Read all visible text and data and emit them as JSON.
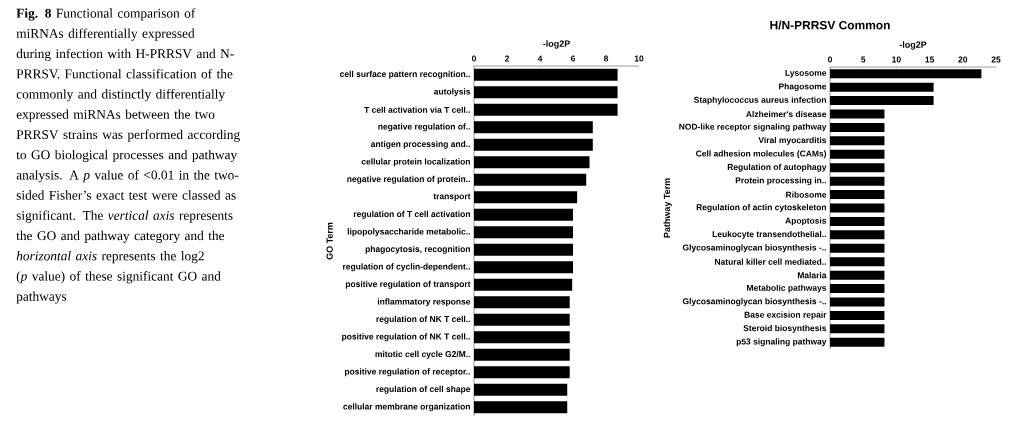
{
  "chart_data": [
    {
      "type": "bar",
      "orientation": "horizontal",
      "xlabel": "-log2P",
      "ylabel": "GO Term",
      "color": "#000000",
      "xlim": [
        0,
        10
      ],
      "xticks": [
        0,
        2,
        4,
        6,
        8,
        10
      ],
      "categories": [
        "cell surface pattern recognition..",
        "autolysis",
        "T cell activation via T cell..",
        "negative regulation of..",
        "antigen processing and..",
        "cellular protein localization",
        "negative regulation of protein..",
        "transport",
        "regulation of T cell activation",
        "lipopolysaccharide metabolic..",
        "phagocytosis, recognition",
        "regulation of cyclin-dependent..",
        "positive regulation of transport",
        "inflammatory response",
        "regulation of NK T cell..",
        "positive regulation of NK T cell..",
        "mitotic cell cycle G2/M..",
        "positive regulation of receptor..",
        "regulation of cell shape",
        "cellular membrane organization"
      ],
      "values": [
        8.7,
        8.7,
        8.7,
        7.2,
        7.2,
        7.0,
        6.8,
        6.25,
        6.0,
        6.0,
        6.0,
        6.0,
        5.95,
        5.8,
        5.8,
        5.8,
        5.8,
        5.8,
        5.65,
        5.65
      ],
      "annotations": [
        "**Fig. 8** Functional comparison of miRNAs differentially expressed during infection with H-PRRSV and N-PRRSV. Functional classification of the commonly and distinctly differentially expressed miRNAs between the two PRRSV strains was performed according to GO biological processes and pathway analysis. A *p* value of <0.01 in the two-sided Fisher’s exact test were classed as significant. The *vertical axis* represents the GO and pathway category and the *horizontal axis* represents the log2 (*p* value) of these significant GO and pathways"
      ]
    },
    {
      "type": "bar",
      "orientation": "horizontal",
      "title": "H/N-PRRSV Common",
      "xlabel": "-log2P",
      "ylabel": "Pathway Term",
      "color": "#000000",
      "xlim": [
        0,
        25
      ],
      "xticks": [
        0,
        5,
        10,
        15,
        20,
        25
      ],
      "categories": [
        "Lysosome",
        "Phagosome",
        "Staphylococcus aureus infection",
        "Alzheimer's disease",
        "NOD-like receptor signaling pathway",
        "Viral myocarditis",
        "Cell adhesion molecules (CAMs)",
        "Regulation of autophagy",
        "Protein processing in..",
        "Ribosome",
        "Regulation of actin cytoskeleton",
        "Apoptosis",
        "Leukocyte transendothelial..",
        "Glycosaminoglycan biosynthesis -..",
        "Natural killer cell mediated..",
        "Malaria",
        "Metabolic pathways",
        "Glycosaminoglycan biosynthesis -..",
        "Base excision repair",
        "Steroid biosynthesis",
        "p53 signaling pathway"
      ],
      "values": [
        22.8,
        15.6,
        15.6,
        8.2,
        8.2,
        8.2,
        8.2,
        8.2,
        8.2,
        8.2,
        8.2,
        8.2,
        8.2,
        8.2,
        8.2,
        8.2,
        8.2,
        8.2,
        8.2,
        8.2,
        8.2
      ]
    }
  ]
}
